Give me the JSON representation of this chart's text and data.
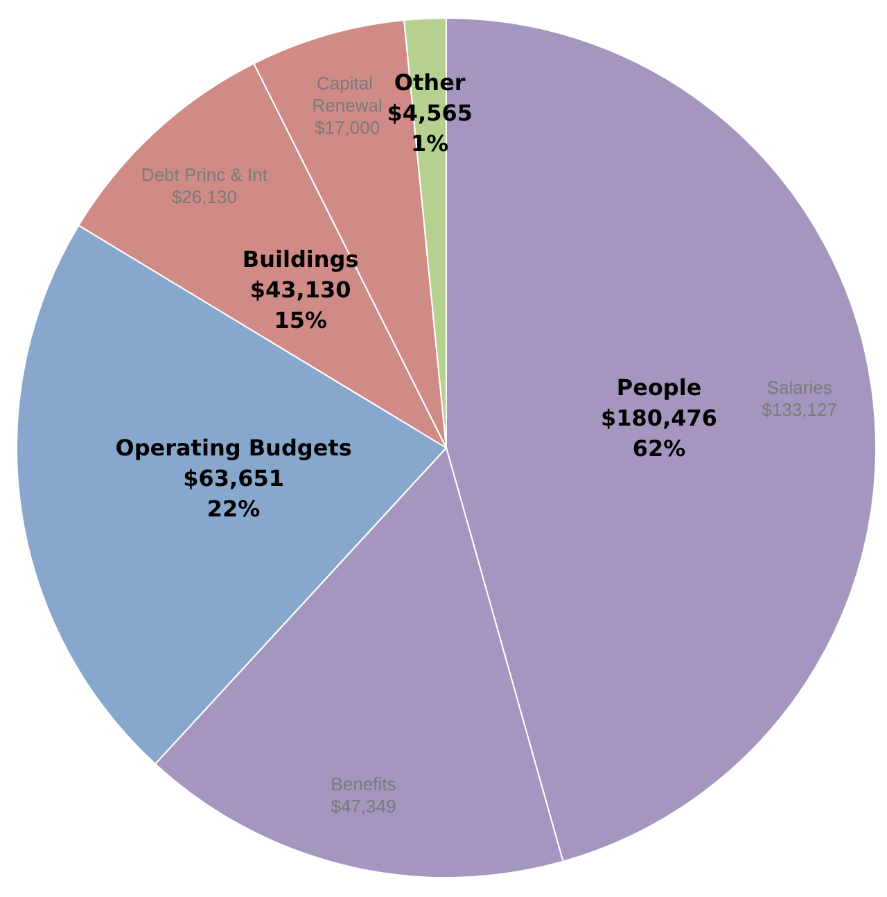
{
  "chart_data": {
    "type": "pie",
    "categories": [
      "Salaries",
      "Benefits",
      "Operating Budgets",
      "Debt Princ & Int",
      "Capital Renewal",
      "Other"
    ],
    "values": [
      133127,
      47349,
      63651,
      26130,
      17000,
      4565
    ],
    "colors": [
      "#a596bf",
      "#a596bf",
      "#87a7cc",
      "#d08b86",
      "#d08b86",
      "#b6d08f"
    ],
    "value_labels": [
      "$133,127",
      "$47,349",
      "$63,651\n22%",
      "$26,130",
      "$17,000",
      "$4,565\n1%"
    ],
    "annotations": [
      "People\n$180,476\n62%",
      "Buildings\n$43,130\n15%"
    ],
    "legend": false
  }
}
